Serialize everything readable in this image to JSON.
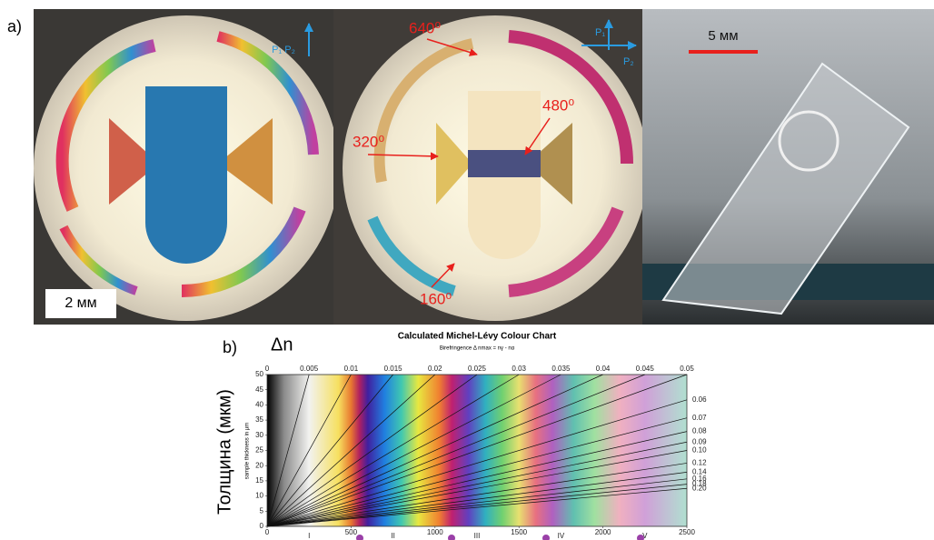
{
  "panel_a": {
    "label": "a)",
    "photo1": {
      "polarizers": "P₁ P₂",
      "scale": "2 мм"
    },
    "photo2": {
      "polarizer_1": "P₁",
      "polarizer_2": "P₂",
      "annotations": [
        "640⁰",
        "480⁰",
        "320⁰",
        "160⁰"
      ]
    },
    "photo3": {
      "scale": "5 мм"
    }
  },
  "panel_b": {
    "label": "b)",
    "delta_n": "Δn",
    "y_title": "Толщина (мкм)",
    "chart": {
      "title": "Calculated Michel-Lévy Colour Chart",
      "subtitle": "Birefringence Δ nmax = nγ - nα",
      "y_axis_label": "sample thickness in µm",
      "yticks": [
        0,
        5,
        10,
        15,
        20,
        25,
        30,
        35,
        40,
        45,
        50
      ],
      "xticks": [
        0,
        500,
        1000,
        1500,
        2000,
        2500
      ],
      "top_ticks": [
        0,
        0.005,
        0.01,
        0.015,
        0.02,
        0.025,
        0.03,
        0.035,
        0.04,
        0.045,
        0.05
      ],
      "right_ticks": [
        0.06,
        0.07,
        0.08,
        0.09,
        {
          "value": 0.1,
          "label": "0.10"
        },
        0.12,
        0.14,
        0.16,
        0.18,
        {
          "value": 0.2,
          "label": "0.20"
        }
      ],
      "orders": [
        "I",
        "II",
        "III",
        "IV",
        "V"
      ]
    }
  }
}
